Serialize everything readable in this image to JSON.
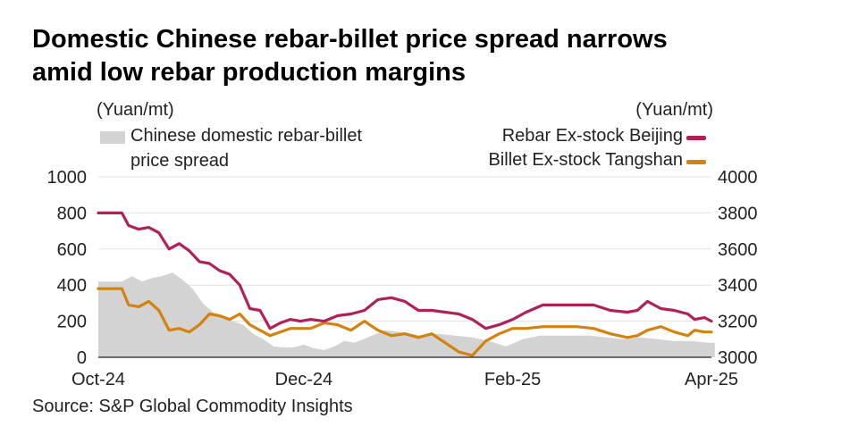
{
  "title_line1": "Domestic Chinese rebar-billet price spread narrows",
  "title_line2": "amid low rebar production margins",
  "left_unit": "(Yuan/mt)",
  "right_unit": "(Yuan/mt)",
  "source": "Source: S&P Global Commodity Insights",
  "colors": {
    "spread": "#d3d3d3",
    "rebar": "#b0215a",
    "billet": "#d4820f",
    "grid": "#e2e2e2"
  },
  "chart_data": {
    "type": "line",
    "title": "Domestic Chinese rebar-billet price spread narrows amid low rebar production margins",
    "y_left": {
      "label": "(Yuan/mt)",
      "range": [
        0,
        1000
      ],
      "ticks": [
        0,
        200,
        400,
        600,
        800,
        1000
      ]
    },
    "y_right": {
      "label": "(Yuan/mt)",
      "range": [
        3000,
        4000
      ],
      "ticks": [
        3000,
        3200,
        3400,
        3600,
        3800,
        4000
      ]
    },
    "x_ticks": [
      "Oct-24",
      "Dec-24",
      "Feb-25",
      "Apr-25"
    ],
    "x_range": [
      "2024-10-01",
      "2025-04-01"
    ],
    "grid": true,
    "series": [
      {
        "name": "Chinese domestic rebar-billet price spread",
        "axis": "left",
        "kind": "area",
        "dates": [
          "2024-10-01",
          "2024-10-08",
          "2024-10-11",
          "2024-10-14",
          "2024-10-17",
          "2024-10-20",
          "2024-10-23",
          "2024-10-26",
          "2024-10-29",
          "2024-11-01",
          "2024-11-04",
          "2024-11-07",
          "2024-11-10",
          "2024-11-13",
          "2024-11-16",
          "2024-11-19",
          "2024-11-22",
          "2024-11-25",
          "2024-11-28",
          "2024-12-01",
          "2024-12-04",
          "2024-12-07",
          "2024-12-10",
          "2024-12-13",
          "2024-12-16",
          "2024-12-20",
          "2024-12-25",
          "2024-12-30",
          "2025-01-05",
          "2025-01-10",
          "2025-01-15",
          "2025-01-20",
          "2025-01-25",
          "2025-01-30",
          "2025-02-04",
          "2025-02-09",
          "2025-02-14",
          "2025-02-19",
          "2025-02-24",
          "2025-03-01",
          "2025-03-06",
          "2025-03-11",
          "2025-03-16",
          "2025-03-21",
          "2025-03-26",
          "2025-03-31",
          "2025-04-02"
        ],
        "values": [
          420,
          420,
          450,
          420,
          440,
          450,
          470,
          430,
          380,
          300,
          250,
          220,
          200,
          180,
          130,
          100,
          60,
          55,
          55,
          70,
          50,
          40,
          60,
          90,
          80,
          110,
          150,
          140,
          120,
          130,
          120,
          110,
          90,
          60,
          100,
          120,
          120,
          120,
          120,
          110,
          100,
          110,
          100,
          90,
          90,
          80,
          80
        ]
      },
      {
        "name": "Rebar Ex-stock Beijing",
        "axis": "right",
        "dates": [
          "2024-10-01",
          "2024-10-08",
          "2024-10-10",
          "2024-10-13",
          "2024-10-16",
          "2024-10-19",
          "2024-10-22",
          "2024-10-25",
          "2024-10-28",
          "2024-10-31",
          "2024-11-03",
          "2024-11-06",
          "2024-11-09",
          "2024-11-12",
          "2024-11-15",
          "2024-11-18",
          "2024-11-21",
          "2024-11-24",
          "2024-11-27",
          "2024-11-30",
          "2024-12-03",
          "2024-12-07",
          "2024-12-11",
          "2024-12-15",
          "2024-12-19",
          "2024-12-23",
          "2024-12-27",
          "2024-12-31",
          "2025-01-04",
          "2025-01-08",
          "2025-01-12",
          "2025-01-16",
          "2025-01-20",
          "2025-01-24",
          "2025-01-28",
          "2025-02-01",
          "2025-02-05",
          "2025-02-10",
          "2025-02-15",
          "2025-02-20",
          "2025-02-25",
          "2025-03-02",
          "2025-03-07",
          "2025-03-10",
          "2025-03-13",
          "2025-03-17",
          "2025-03-21",
          "2025-03-25",
          "2025-03-27",
          "2025-03-30",
          "2025-04-01"
        ],
        "values": [
          3800,
          3800,
          3730,
          3710,
          3720,
          3690,
          3600,
          3630,
          3590,
          3530,
          3520,
          3480,
          3460,
          3400,
          3270,
          3260,
          3160,
          3190,
          3210,
          3200,
          3210,
          3200,
          3230,
          3240,
          3260,
          3320,
          3330,
          3310,
          3260,
          3260,
          3250,
          3240,
          3210,
          3160,
          3180,
          3210,
          3250,
          3290,
          3290,
          3290,
          3290,
          3260,
          3250,
          3260,
          3310,
          3270,
          3260,
          3240,
          3210,
          3220,
          3200
        ]
      },
      {
        "name": "Billet Ex-stock Tangshan",
        "axis": "right",
        "dates": [
          "2024-10-01",
          "2024-10-08",
          "2024-10-10",
          "2024-10-13",
          "2024-10-16",
          "2024-10-19",
          "2024-10-22",
          "2024-10-25",
          "2024-10-28",
          "2024-10-31",
          "2024-11-03",
          "2024-11-06",
          "2024-11-09",
          "2024-11-12",
          "2024-11-15",
          "2024-11-18",
          "2024-11-21",
          "2024-11-24",
          "2024-11-27",
          "2024-11-30",
          "2024-12-03",
          "2024-12-07",
          "2024-12-11",
          "2024-12-15",
          "2024-12-19",
          "2024-12-23",
          "2024-12-27",
          "2024-12-31",
          "2025-01-04",
          "2025-01-08",
          "2025-01-12",
          "2025-01-16",
          "2025-01-20",
          "2025-01-24",
          "2025-01-28",
          "2025-02-01",
          "2025-02-05",
          "2025-02-10",
          "2025-02-15",
          "2025-02-20",
          "2025-02-25",
          "2025-03-02",
          "2025-03-07",
          "2025-03-10",
          "2025-03-13",
          "2025-03-17",
          "2025-03-21",
          "2025-03-25",
          "2025-03-27",
          "2025-03-30",
          "2025-04-01"
        ],
        "values": [
          3380,
          3380,
          3290,
          3280,
          3310,
          3260,
          3150,
          3160,
          3140,
          3180,
          3240,
          3230,
          3210,
          3240,
          3180,
          3150,
          3120,
          3140,
          3160,
          3160,
          3160,
          3190,
          3180,
          3150,
          3200,
          3150,
          3120,
          3130,
          3110,
          3130,
          3080,
          3030,
          3010,
          3090,
          3130,
          3160,
          3160,
          3170,
          3170,
          3170,
          3160,
          3130,
          3110,
          3120,
          3150,
          3170,
          3140,
          3120,
          3150,
          3140,
          3140
        ]
      }
    ]
  }
}
